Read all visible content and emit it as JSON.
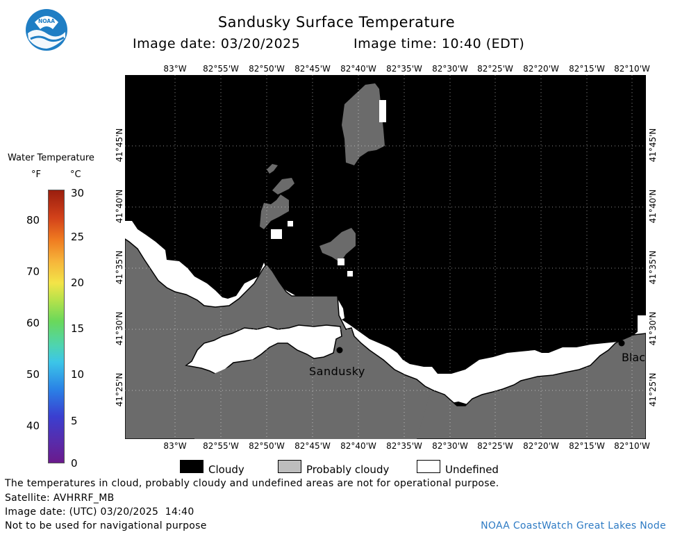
{
  "header": {
    "title": "Sandusky Surface Temperature",
    "image_date": "Image date: 03/20/2025",
    "image_time": "Image time: 10:40 (EDT)"
  },
  "logo": {
    "text": "NOAA",
    "icon": "noaa-logo-icon"
  },
  "map": {
    "lon_ticks": [
      "83°W",
      "82°55'W",
      "82°50'W",
      "82°45'W",
      "82°40'W",
      "82°35'W",
      "82°30'W",
      "82°25'W",
      "82°20'W",
      "82°15'W",
      "82°10'W"
    ],
    "lat_ticks": [
      "41°45'N",
      "41°40'N",
      "41°35'N",
      "41°30'N",
      "41°25'N"
    ],
    "place_sandusky": "Sandusky",
    "place_black": "Blac",
    "colors": {
      "cloudy": "#000000",
      "probably_cloudy": "#6b6b6b",
      "undefined": "#ffffff"
    }
  },
  "colorbar": {
    "title": "Water Temperature",
    "unit_f": "°F",
    "unit_c": "°C",
    "f_ticks": [
      "80",
      "70",
      "60",
      "50",
      "40"
    ],
    "c_ticks": [
      "30",
      "25",
      "20",
      "15",
      "10",
      "5",
      "0"
    ]
  },
  "legend": {
    "cloudy": "Cloudy",
    "probably_cloudy": "Probably cloudy",
    "undefined": "Undefined"
  },
  "footer": {
    "disclaimer": "The temperatures in cloud, probably cloudy and undefined areas are not for operational purpose.",
    "satellite": "Satellite: AVHRRF_MB",
    "utc_date": "Image date: (UTC) 03/20/2025  14:40",
    "nav_warning": "Not to be used for navigational purpose",
    "credit": "NOAA CoastWatch Great Lakes Node"
  }
}
